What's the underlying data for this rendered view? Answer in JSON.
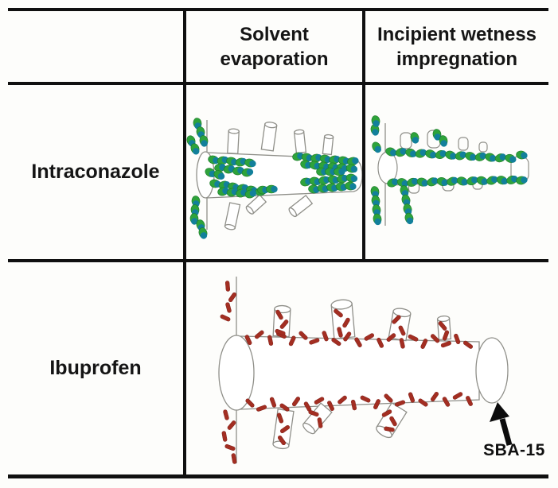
{
  "table": {
    "column_headers": [
      "Solvent evaporation",
      "Incipient wetness impregnation"
    ],
    "row_headers": [
      "Intraconazole",
      "Ibuprofen"
    ],
    "annotation": "SBA-15"
  },
  "diagrams": {
    "itraconazole_solvent_evaporation": "sba15-rod-with-clustered-green-teal-drug-molecules",
    "itraconazole_incipient_wetness": "sba15-rod-with-even-monolayer-green-teal-drug-molecules",
    "ibuprofen_loaded": "sba15-rod-lined-with-red-ibuprofen-rods-arrow-to-sba15"
  },
  "colors": {
    "molecule_green": "#2ea33b",
    "molecule_green_dark": "#1c7a28",
    "molecule_teal": "#12809b",
    "ibuprofen_red": "#a32e22",
    "ibuprofen_red_dark": "#7e1f18",
    "silica_outline": "#8f8f89",
    "table_border": "#101010",
    "background": "#fdfdfb"
  }
}
